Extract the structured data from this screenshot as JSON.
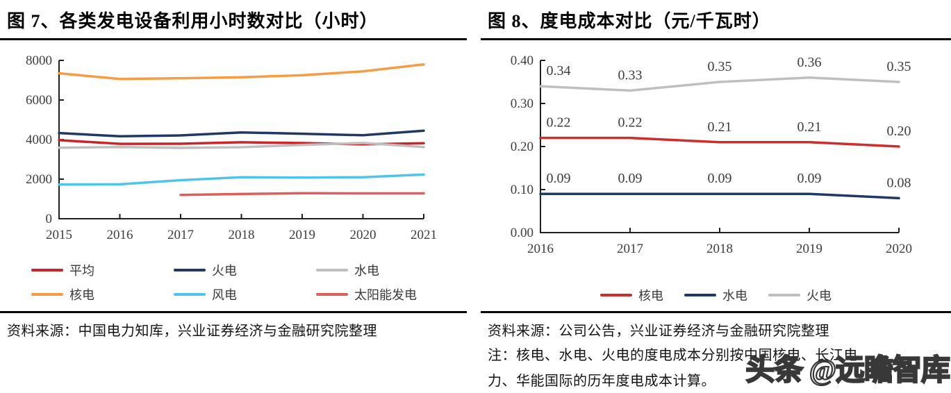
{
  "figure7": {
    "title": "图 7、各类发电设备利用小时数对比（小时）",
    "source": "资料来源：中国电力知库，兴业证券经济与金融研究院整理"
  },
  "figure8": {
    "title": "图 8、度电成本对比（元/千瓦时）",
    "source": "资料来源：公司公告，兴业证券经济与金融研究院整理",
    "note_line1": "注：核电、水电、火电的度电成本分别按中国核电、长江电",
    "note_line2": "力、华能国际的历年度电成本计算。"
  },
  "watermark": "头条 @远瞻智库",
  "chart_data": [
    {
      "id": "chart7",
      "type": "line",
      "title": "各类发电设备利用小时数对比（小时）",
      "categories": [
        "2015",
        "2016",
        "2017",
        "2018",
        "2019",
        "2020",
        "2021"
      ],
      "ylim": [
        0,
        8000
      ],
      "yticks": [
        {
          "value": 0,
          "label": "0"
        },
        {
          "value": 2000,
          "label": "2000"
        },
        {
          "value": 4000,
          "label": "4000"
        },
        {
          "value": 6000,
          "label": "6000"
        },
        {
          "value": 8000,
          "label": "8000"
        }
      ],
      "grid": false,
      "legend_position": "bottom",
      "series": [
        {
          "name": "平均",
          "color": "#CC2529",
          "values": [
            3969,
            3785,
            3790,
            3862,
            3825,
            3758,
            3817
          ]
        },
        {
          "name": "火电",
          "color": "#1F3864",
          "values": [
            4329,
            4165,
            4209,
            4361,
            4293,
            4216,
            4448
          ]
        },
        {
          "name": "水电",
          "color": "#BFBFBF",
          "values": [
            3590,
            3621,
            3579,
            3613,
            3726,
            3827,
            3622
          ]
        },
        {
          "name": "核电",
          "color": "#F79C42",
          "values": [
            7350,
            7060,
            7100,
            7150,
            7250,
            7450,
            7800
          ]
        },
        {
          "name": "风电",
          "color": "#4EC4E8",
          "values": [
            1728,
            1742,
            1948,
            2095,
            2082,
            2097,
            2232
          ]
        },
        {
          "name": "太阳能发电",
          "color": "#E15D5B",
          "values": [
            null,
            null,
            1204,
            1250,
            1290,
            1281,
            1280
          ]
        }
      ]
    },
    {
      "id": "chart8",
      "type": "line",
      "title": "度电成本对比（元/千瓦时）",
      "categories": [
        "2016",
        "2017",
        "2018",
        "2019",
        "2020"
      ],
      "ylim": [
        0,
        0.4
      ],
      "yticks": [
        {
          "value": 0,
          "label": "0.00"
        },
        {
          "value": 0.1,
          "label": "0.10"
        },
        {
          "value": 0.2,
          "label": "0.20"
        },
        {
          "value": 0.3,
          "label": "0.30"
        },
        {
          "value": 0.4,
          "label": "0.40"
        }
      ],
      "grid": false,
      "legend_position": "bottom",
      "series": [
        {
          "name": "核电",
          "color": "#D02C2A",
          "values": [
            0.22,
            0.22,
            0.21,
            0.21,
            0.2
          ],
          "point_labels": [
            "0.22",
            "0.22",
            "0.21",
            "0.21",
            "0.20"
          ]
        },
        {
          "name": "水电",
          "color": "#1F3864",
          "values": [
            0.09,
            0.09,
            0.09,
            0.09,
            0.08
          ],
          "point_labels": [
            "0.09",
            "0.09",
            "0.09",
            "0.09",
            "0.08"
          ]
        },
        {
          "name": "火电",
          "color": "#BFBFBF",
          "values": [
            0.34,
            0.33,
            0.35,
            0.36,
            0.35
          ],
          "point_labels": [
            "0.34",
            "0.33",
            "0.35",
            "0.36",
            "0.35"
          ]
        }
      ]
    }
  ]
}
